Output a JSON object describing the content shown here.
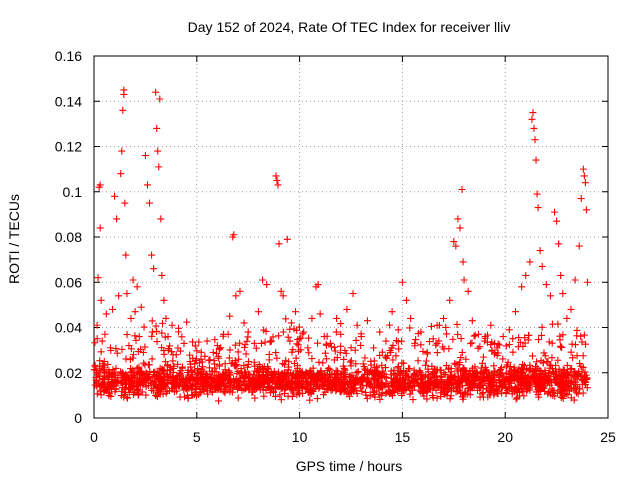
{
  "chart_data": {
    "type": "scatter",
    "title": "Day 152 of 2024, Rate Of TEC Index for receiver lliv",
    "xlabel": "GPS time / hours",
    "ylabel": "ROTI / TECUs",
    "xlim": [
      0,
      25
    ],
    "ylim": [
      0,
      0.16
    ],
    "xticks": [
      0,
      5,
      10,
      15,
      20,
      25
    ],
    "xtick_labels": [
      "0",
      "5",
      "10",
      "15",
      "20",
      "25"
    ],
    "yticks": [
      0,
      0.02,
      0.04,
      0.06,
      0.08,
      0.1,
      0.12,
      0.14,
      0.16
    ],
    "ytick_labels": [
      "0",
      "0.02",
      "0.04",
      "0.06",
      "0.08",
      "0.1",
      "0.12",
      "0.14",
      "0.16"
    ],
    "grid": true,
    "marker": "plus",
    "series": [
      {
        "name": "ROTI",
        "color": "#ff0000",
        "points": [
          [
            0.1,
            0.021
          ],
          [
            0.15,
            0.041
          ],
          [
            0.2,
            0.062
          ],
          [
            0.25,
            0.102
          ],
          [
            0.3,
            0.103
          ],
          [
            0.3,
            0.084
          ],
          [
            0.35,
            0.052
          ],
          [
            0.4,
            0.034
          ],
          [
            0.5,
            0.025
          ],
          [
            0.6,
            0.046
          ],
          [
            0.7,
            0.018
          ],
          [
            0.8,
            0.031
          ],
          [
            0.9,
            0.048
          ],
          [
            1.0,
            0.098
          ],
          [
            1.1,
            0.088
          ],
          [
            1.2,
            0.054
          ],
          [
            1.3,
            0.108
          ],
          [
            1.35,
            0.118
          ],
          [
            1.4,
            0.136
          ],
          [
            1.45,
            0.145
          ],
          [
            1.45,
            0.143
          ],
          [
            1.5,
            0.095
          ],
          [
            1.55,
            0.072
          ],
          [
            1.6,
            0.055
          ],
          [
            1.7,
            0.032
          ],
          [
            1.8,
            0.044
          ],
          [
            1.9,
            0.061
          ],
          [
            2.0,
            0.047
          ],
          [
            2.1,
            0.058
          ],
          [
            2.2,
            0.036
          ],
          [
            2.3,
            0.049
          ],
          [
            2.4,
            0.029
          ],
          [
            2.5,
            0.116
          ],
          [
            2.6,
            0.103
          ],
          [
            2.7,
            0.095
          ],
          [
            2.8,
            0.072
          ],
          [
            2.9,
            0.066
          ],
          [
            3.0,
            0.144
          ],
          [
            3.05,
            0.128
          ],
          [
            3.1,
            0.118
          ],
          [
            3.15,
            0.111
          ],
          [
            3.2,
            0.141
          ],
          [
            3.25,
            0.088
          ],
          [
            3.3,
            0.063
          ],
          [
            3.4,
            0.052
          ],
          [
            3.5,
            0.044
          ],
          [
            3.6,
            0.036
          ],
          [
            3.8,
            0.041
          ],
          [
            4.0,
            0.028
          ],
          [
            4.3,
            0.022
          ],
          [
            4.6,
            0.019
          ],
          [
            4.9,
            0.024
          ],
          [
            5.2,
            0.026
          ],
          [
            5.5,
            0.034
          ],
          [
            5.8,
            0.029
          ],
          [
            6.0,
            0.032
          ],
          [
            6.3,
            0.037
          ],
          [
            6.6,
            0.045
          ],
          [
            6.8,
            0.081
          ],
          [
            6.75,
            0.08
          ],
          [
            6.9,
            0.054
          ],
          [
            7.1,
            0.056
          ],
          [
            7.3,
            0.042
          ],
          [
            7.5,
            0.038
          ],
          [
            7.8,
            0.033
          ],
          [
            8.0,
            0.047
          ],
          [
            8.2,
            0.061
          ],
          [
            8.4,
            0.059
          ],
          [
            8.6,
            0.034
          ],
          [
            8.85,
            0.107
          ],
          [
            8.9,
            0.105
          ],
          [
            8.95,
            0.103
          ],
          [
            9.0,
            0.077
          ],
          [
            9.1,
            0.056
          ],
          [
            9.2,
            0.054
          ],
          [
            9.4,
            0.079
          ],
          [
            9.6,
            0.042
          ],
          [
            9.8,
            0.047
          ],
          [
            10.0,
            0.035
          ],
          [
            10.2,
            0.038
          ],
          [
            10.4,
            0.031
          ],
          [
            10.6,
            0.044
          ],
          [
            10.8,
            0.058
          ],
          [
            10.9,
            0.059
          ],
          [
            11.0,
            0.046
          ],
          [
            11.2,
            0.036
          ],
          [
            11.5,
            0.033
          ],
          [
            11.8,
            0.044
          ],
          [
            12.0,
            0.037
          ],
          [
            12.3,
            0.048
          ],
          [
            12.6,
            0.055
          ],
          [
            12.8,
            0.041
          ],
          [
            13.0,
            0.036
          ],
          [
            13.3,
            0.043
          ],
          [
            13.6,
            0.031
          ],
          [
            13.9,
            0.038
          ],
          [
            14.2,
            0.034
          ],
          [
            14.5,
            0.047
          ],
          [
            14.8,
            0.039
          ],
          [
            15.0,
            0.06
          ],
          [
            15.2,
            0.052
          ],
          [
            15.4,
            0.044
          ],
          [
            15.6,
            0.033
          ],
          [
            15.9,
            0.038
          ],
          [
            16.2,
            0.029
          ],
          [
            16.5,
            0.035
          ],
          [
            16.8,
            0.041
          ],
          [
            17.0,
            0.044
          ],
          [
            17.3,
            0.052
          ],
          [
            17.5,
            0.078
          ],
          [
            17.6,
            0.076
          ],
          [
            17.7,
            0.088
          ],
          [
            17.8,
            0.084
          ],
          [
            17.9,
            0.101
          ],
          [
            17.95,
            0.069
          ],
          [
            18.0,
            0.061
          ],
          [
            18.2,
            0.056
          ],
          [
            18.4,
            0.043
          ],
          [
            18.7,
            0.037
          ],
          [
            19.0,
            0.034
          ],
          [
            19.3,
            0.041
          ],
          [
            19.6,
            0.031
          ],
          [
            19.9,
            0.036
          ],
          [
            20.2,
            0.039
          ],
          [
            20.5,
            0.047
          ],
          [
            20.8,
            0.058
          ],
          [
            21.0,
            0.063
          ],
          [
            21.2,
            0.069
          ],
          [
            21.3,
            0.132
          ],
          [
            21.35,
            0.135
          ],
          [
            21.4,
            0.128
          ],
          [
            21.45,
            0.123
          ],
          [
            21.5,
            0.114
          ],
          [
            21.55,
            0.099
          ],
          [
            21.6,
            0.093
          ],
          [
            21.7,
            0.074
          ],
          [
            21.8,
            0.067
          ],
          [
            22.0,
            0.059
          ],
          [
            22.2,
            0.054
          ],
          [
            22.4,
            0.091
          ],
          [
            22.5,
            0.087
          ],
          [
            22.6,
            0.077
          ],
          [
            22.7,
            0.063
          ],
          [
            22.8,
            0.055
          ],
          [
            23.0,
            0.044
          ],
          [
            23.2,
            0.048
          ],
          [
            23.4,
            0.061
          ],
          [
            23.6,
            0.076
          ],
          [
            23.7,
            0.097
          ],
          [
            23.8,
            0.11
          ],
          [
            23.85,
            0.107
          ],
          [
            23.9,
            0.104
          ],
          [
            23.95,
            0.092
          ],
          [
            24.0,
            0.06
          ]
        ]
      }
    ],
    "baseline_band": {
      "x_range": [
        0,
        24
      ],
      "y_center": 0.016,
      "y_spread": 0.008,
      "density_points": 2400
    }
  }
}
